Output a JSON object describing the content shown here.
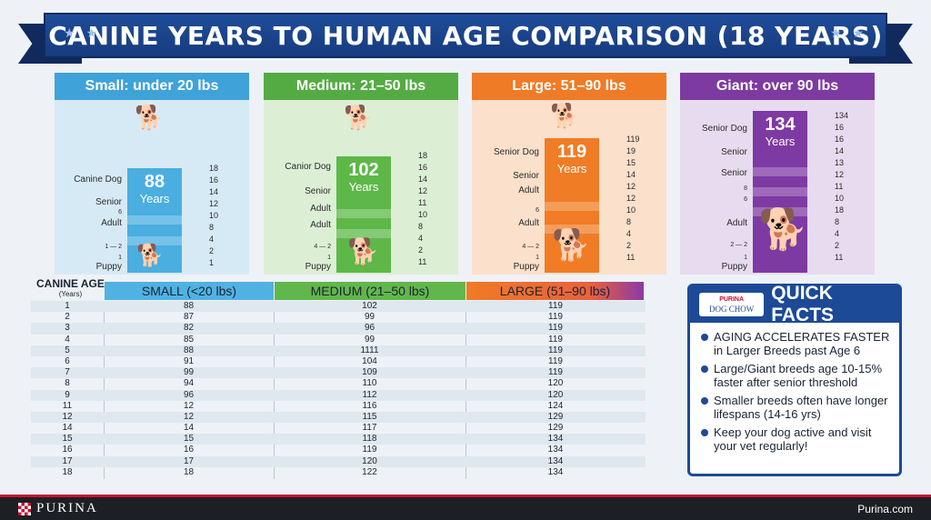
{
  "banner": {
    "title": "CANINE YEARS TO HUMAN AGE COMPARISON (18 YEARS)",
    "stars": "★ ★"
  },
  "cards": {
    "small": {
      "title": "Small: under 20 lbs",
      "value": "88",
      "sub": "Years",
      "labels": [
        "Canine Dog",
        "Senior",
        "6",
        "Adult",
        "1 — 2",
        "1",
        "Puppy"
      ],
      "ticks": [
        "18",
        "16",
        "14",
        "12",
        "10",
        "8",
        "4",
        "2",
        "1"
      ]
    },
    "medium": {
      "title": "Medium: 21–50 lbs",
      "value": "102",
      "sub": "Years",
      "labels": [
        "Canior Dog",
        "Senior",
        "Adult",
        "Adult",
        "4 — 2",
        "1",
        "Puppy"
      ],
      "ticks": [
        "18",
        "16",
        "14",
        "12",
        "11",
        "10",
        "8",
        "4",
        "2",
        "11"
      ]
    },
    "large": {
      "title": "Large: 51–90 lbs",
      "value": "119",
      "sub": "Years",
      "labels": [
        "Senior Dog",
        "Senior",
        "Adult",
        "6",
        "Adult",
        "4 — 2",
        "1",
        "Puppy"
      ],
      "ticks": [
        "119",
        "19",
        "15",
        "14",
        "12",
        "12",
        "10",
        "8",
        "4",
        "2",
        "11"
      ]
    },
    "giant": {
      "title": "Giant: over 90 lbs",
      "value": "134",
      "sub": "Years",
      "labels": [
        "Senior Dog",
        "Senior",
        "Senior",
        "8",
        "6",
        "Adult",
        "2 — 2",
        "1",
        "Puppy"
      ],
      "ticks": [
        "134",
        "16",
        "16",
        "14",
        "13",
        "12",
        "11",
        "10",
        "18",
        "8",
        "4",
        "2",
        "11"
      ]
    }
  },
  "table": {
    "age_label": "CANINE AGE",
    "age_sub": "(Years)",
    "headers": [
      "SMALL (<20 lbs)",
      "MEDIUM (21–50 lbs)",
      "LARGE (51–90 lbs)"
    ],
    "rows": [
      [
        "1",
        "88",
        "102",
        "119"
      ],
      [
        "2",
        "87",
        "99",
        "119"
      ],
      [
        "3",
        "82",
        "96",
        "119"
      ],
      [
        "4",
        "85",
        "99",
        "119"
      ],
      [
        "5",
        "88",
        "1111",
        "119"
      ],
      [
        "6",
        "91",
        "104",
        "119"
      ],
      [
        "7",
        "99",
        "109",
        "119"
      ],
      [
        "8",
        "94",
        "110",
        "120"
      ],
      [
        "9",
        "96",
        "112",
        "120"
      ],
      [
        "11",
        "12",
        "116",
        "124"
      ],
      [
        "12",
        "12",
        "115",
        "129"
      ],
      [
        "14",
        "14",
        "117",
        "129"
      ],
      [
        "15",
        "15",
        "118",
        "134"
      ],
      [
        "16",
        "16",
        "119",
        "134"
      ],
      [
        "17",
        "17",
        "120",
        "134"
      ],
      [
        "18",
        "18",
        "122",
        "134"
      ]
    ]
  },
  "facts": {
    "brand_top": "PURINA",
    "brand_name": "DOG CHOW",
    "title": "QUICK FACTS",
    "items": [
      "AGING ACCELERATES FASTER in Larger Breeds past Age 6",
      "Large/Giant breeds age 10-15% faster after senior threshold",
      "Smaller breeds often have longer lifespans (14-16 yrs)",
      "Keep your dog active and visit your vet regularly!"
    ]
  },
  "footer": {
    "brand": "PURINA",
    "url": "Purina.com"
  }
}
